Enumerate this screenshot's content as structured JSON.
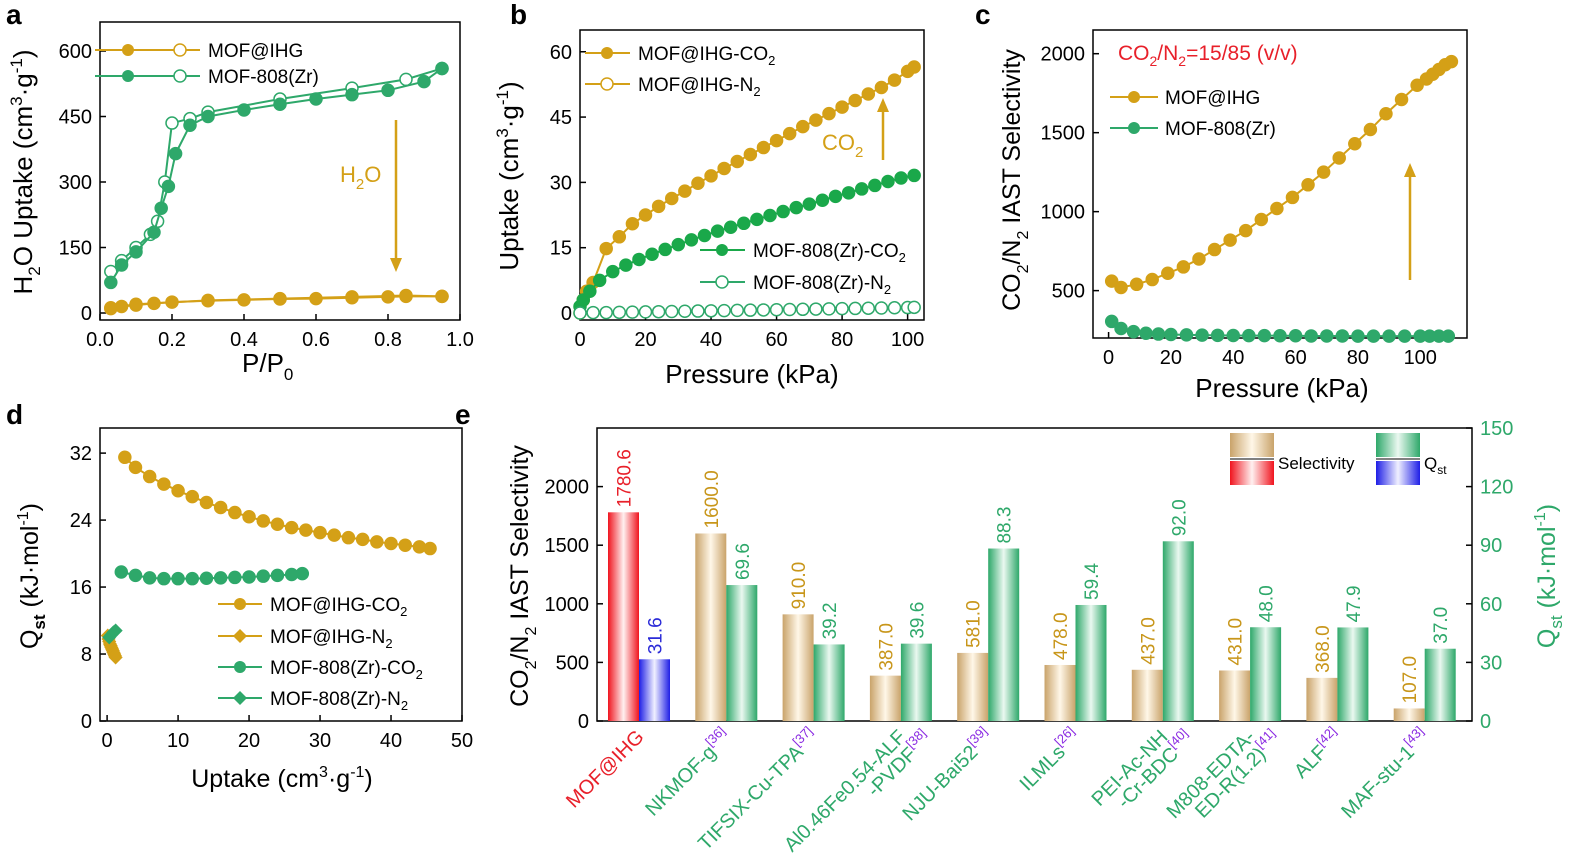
{
  "colors": {
    "gold": "#D4A017",
    "green": "#2EA86A",
    "red": "#E8202A",
    "blue": "#2B2BD8",
    "purple": "#8A2BE2"
  },
  "chart_data": [
    {
      "id": "a",
      "type": "line",
      "panel_label": "a",
      "xlabel": "P/P0",
      "ylabel": "H2O Uptake (cm3·g-1)",
      "xlim": [
        0,
        1.0
      ],
      "ylim": [
        0,
        600
      ],
      "xticks": [
        "0.0",
        "0.2",
        "0.4",
        "0.6",
        "0.8",
        "1.0"
      ],
      "yticks": [
        "0",
        "150",
        "300",
        "450",
        "600"
      ],
      "annotation": "H2O",
      "series": [
        {
          "name": "MOF@IHG",
          "color": "gold",
          "adsorption": {
            "x": [
              0.03,
              0.06,
              0.1,
              0.15,
              0.2,
              0.3,
              0.4,
              0.5,
              0.6,
              0.7,
              0.8,
              0.85,
              0.95
            ],
            "y": [
              10,
              15,
              18,
              22,
              25,
              28,
              30,
              32,
              33,
              35,
              37,
              38,
              38
            ]
          },
          "desorption": {
            "x": [
              0.95,
              0.85,
              0.7,
              0.5,
              0.3,
              0.1,
              0.03
            ],
            "y": [
              38,
              40,
              37,
              33,
              29,
              20,
              12
            ]
          }
        },
        {
          "name": "MOF-808(Zr)",
          "color": "green",
          "adsorption": {
            "x": [
              0.03,
              0.06,
              0.1,
              0.15,
              0.17,
              0.19,
              0.21,
              0.25,
              0.3,
              0.4,
              0.5,
              0.6,
              0.7,
              0.8,
              0.9,
              0.95
            ],
            "y": [
              70,
              110,
              140,
              185,
              240,
              290,
              365,
              430,
              450,
              465,
              478,
              490,
              500,
              510,
              530,
              560
            ]
          },
          "desorption": {
            "x": [
              0.95,
              0.85,
              0.7,
              0.5,
              0.3,
              0.25,
              0.2,
              0.18,
              0.16,
              0.14,
              0.1,
              0.06,
              0.03
            ],
            "y": [
              560,
              535,
              515,
              490,
              460,
              445,
              435,
              300,
              210,
              180,
              150,
              120,
              95
            ]
          }
        }
      ]
    },
    {
      "id": "b",
      "type": "line",
      "panel_label": "b",
      "xlabel": "Pressure (kPa)",
      "ylabel": "Uptake (cm3·g-1)",
      "xlim": [
        0,
        105
      ],
      "ylim": [
        0,
        65
      ],
      "xticks": [
        "0",
        "20",
        "40",
        "60",
        "80",
        "100"
      ],
      "yticks": [
        "0",
        "15",
        "30",
        "45",
        "60"
      ],
      "annotation": "CO2",
      "series": [
        {
          "name": "MOF@IHG-CO2",
          "color": "gold",
          "filled": true,
          "x": [
            0,
            1,
            2,
            4,
            8,
            12,
            16,
            20,
            24,
            28,
            32,
            36,
            40,
            44,
            48,
            52,
            56,
            60,
            64,
            68,
            72,
            76,
            80,
            84,
            88,
            92,
            96,
            100,
            102
          ],
          "y": [
            0,
            3,
            5,
            7,
            14.8,
            17.5,
            20.5,
            22.5,
            24.5,
            26.3,
            28,
            29.8,
            31.5,
            33.2,
            34.8,
            36.4,
            38,
            39.6,
            41.2,
            42.8,
            44.3,
            45.8,
            47.3,
            48.8,
            50.3,
            51.8,
            53.5,
            55.5,
            56.5
          ]
        },
        {
          "name": "MOF@IHG-N2",
          "color": "gold",
          "filled": false,
          "x": [],
          "y": []
        },
        {
          "name": "MOF-808(Zr)-CO2",
          "color": "green",
          "filled": true,
          "x": [
            0,
            1,
            3,
            6,
            10,
            14,
            18,
            22,
            26,
            30,
            34,
            38,
            42,
            46,
            50,
            54,
            58,
            62,
            66,
            70,
            74,
            78,
            82,
            86,
            90,
            94,
            98,
            102
          ],
          "y": [
            1.5,
            3,
            5,
            7.5,
            9.5,
            11,
            12.3,
            13.5,
            14.6,
            15.7,
            16.8,
            17.8,
            18.8,
            19.7,
            20.6,
            21.5,
            22.4,
            23.3,
            24.2,
            25,
            25.9,
            26.8,
            27.6,
            28.5,
            29.3,
            30.2,
            31,
            31.6
          ]
        },
        {
          "name": "MOF-808(Zr)-N2",
          "color": "green",
          "filled": false,
          "x": [
            0,
            4,
            8,
            12,
            16,
            20,
            24,
            28,
            32,
            36,
            40,
            44,
            48,
            52,
            56,
            60,
            64,
            68,
            72,
            76,
            80,
            84,
            88,
            92,
            96,
            100,
            102
          ],
          "y": [
            0,
            0.1,
            0.1,
            0.15,
            0.2,
            0.25,
            0.3,
            0.35,
            0.4,
            0.45,
            0.5,
            0.55,
            0.6,
            0.65,
            0.7,
            0.75,
            0.8,
            0.85,
            0.9,
            0.95,
            1.0,
            1.05,
            1.1,
            1.15,
            1.2,
            1.25,
            1.3
          ]
        }
      ]
    },
    {
      "id": "c",
      "type": "line",
      "panel_label": "c",
      "xlabel": "Pressure (kPa)",
      "ylabel": "CO2/N2 IAST Selectivity",
      "xlim": [
        -5,
        115
      ],
      "ylim": [
        200,
        2150
      ],
      "xticks": [
        "0",
        "20",
        "40",
        "60",
        "80",
        "100"
      ],
      "yticks": [
        "500",
        "1000",
        "1500",
        "2000"
      ],
      "condition": "CO2/N2=15/85 (v/v)",
      "series": [
        {
          "name": "MOF@IHG",
          "color": "gold",
          "x": [
            1,
            4,
            9,
            14,
            19,
            24,
            29,
            34,
            39,
            44,
            49,
            54,
            59,
            64,
            69,
            74,
            79,
            84,
            89,
            94,
            99,
            102,
            104,
            106,
            108,
            110
          ],
          "y": [
            560,
            520,
            540,
            570,
            610,
            650,
            700,
            760,
            820,
            880,
            950,
            1020,
            1090,
            1170,
            1250,
            1340,
            1430,
            1520,
            1620,
            1710,
            1800,
            1840,
            1870,
            1900,
            1930,
            1950
          ]
        },
        {
          "name": "MOF-808(Zr)",
          "color": "green",
          "x": [
            1,
            4,
            8,
            12,
            16,
            20,
            25,
            30,
            35,
            40,
            45,
            50,
            55,
            60,
            65,
            70,
            75,
            80,
            85,
            90,
            95,
            100,
            103,
            106,
            109
          ],
          "y": [
            305,
            260,
            240,
            230,
            225,
            222,
            220,
            218,
            217,
            216,
            215,
            215,
            214,
            214,
            213,
            213,
            213,
            212,
            212,
            212,
            212,
            212,
            212,
            212,
            212
          ]
        }
      ]
    },
    {
      "id": "d",
      "type": "line",
      "panel_label": "d",
      "xlabel": "Uptake (cm3·g-1)",
      "ylabel": "Qst (kJ·mol-1)",
      "xlim": [
        -1,
        50
      ],
      "ylim": [
        0,
        35
      ],
      "xticks": [
        "0",
        "10",
        "20",
        "30",
        "40",
        "50"
      ],
      "yticks": [
        "0",
        "8",
        "16",
        "24",
        "32"
      ],
      "series": [
        {
          "name": "MOF@IHG-CO2",
          "color": "gold",
          "marker": "circle",
          "x": [
            2.5,
            4,
            6,
            8,
            10,
            12,
            14,
            16,
            18,
            20,
            22,
            24,
            26,
            28,
            30,
            32,
            34,
            36,
            38,
            40,
            42,
            44,
            45.5
          ],
          "y": [
            31.5,
            30.3,
            29.2,
            28.3,
            27.5,
            26.8,
            26.1,
            25.5,
            24.9,
            24.4,
            23.9,
            23.5,
            23.1,
            22.8,
            22.5,
            22.2,
            21.9,
            21.7,
            21.4,
            21.2,
            21.0,
            20.8,
            20.6
          ]
        },
        {
          "name": "MOF@IHG-N2",
          "color": "gold",
          "marker": "diamond",
          "x": [
            0.1,
            0.2,
            0.3,
            0.4,
            0.5,
            0.6,
            0.7,
            0.8,
            0.9,
            1.0,
            1.1,
            1.2
          ],
          "y": [
            10.2,
            9.8,
            9.5,
            9.2,
            9.0,
            8.8,
            8.6,
            8.4,
            8.2,
            8.0,
            7.8,
            7.6
          ]
        },
        {
          "name": "MOF-808(Zr)-CO2",
          "color": "green",
          "marker": "circle",
          "x": [
            2,
            4,
            6,
            8,
            10,
            12,
            14,
            16,
            18,
            20,
            22,
            24,
            26,
            27.5
          ],
          "y": [
            17.8,
            17.4,
            17.1,
            17.0,
            17.0,
            17.0,
            17.05,
            17.1,
            17.15,
            17.2,
            17.3,
            17.4,
            17.5,
            17.6
          ]
        },
        {
          "name": "MOF-808(Zr)-N2",
          "color": "green",
          "marker": "diamond",
          "x": [
            0.3,
            0.6,
            0.9,
            1.2
          ],
          "y": [
            10.0,
            10.3,
            10.6,
            10.8
          ]
        }
      ]
    },
    {
      "id": "e",
      "type": "bar",
      "panel_label": "e",
      "ylabel": "CO2/N2 IAST Selectivity",
      "y2label": "Qst (kJ·mol-1)",
      "ylim": [
        0,
        2500
      ],
      "y2lim": [
        0,
        150
      ],
      "yticks": [
        "0",
        "500",
        "1000",
        "1500",
        "2000"
      ],
      "y2ticks": [
        "0",
        "30",
        "60",
        "90",
        "120",
        "150"
      ],
      "legend": {
        "selectivity": "Selectivity",
        "qst": "Qst"
      },
      "categories": [
        "MOF@IHG",
        "NKMOF-g",
        "TIFSIX-Cu-TPA",
        "Al0.46Fe0.54-ALF-PVDF",
        "NJU-Bai52",
        "ILMLs",
        "PEI-Ac-NH-Cr-BDC",
        "M808-EDTA-ED-R(1.2)",
        "ALF",
        "MAF-stu-1"
      ],
      "selectivity": [
        1780.6,
        1600.0,
        910.0,
        387.0,
        581.0,
        478.0,
        437.0,
        431.0,
        368.0,
        107.0
      ],
      "selectivity_labels": [
        "1780.6",
        "1600.0",
        "910.0",
        "387.0",
        "581.0",
        "478.0",
        "437.0",
        "431.0",
        "368.0",
        "107.0"
      ],
      "qst": [
        31.6,
        69.6,
        39.2,
        39.6,
        88.3,
        59.4,
        92.0,
        48.0,
        47.9,
        37.0
      ],
      "qst_labels": [
        "31.6",
        "69.6",
        "39.2",
        "39.6",
        "88.3",
        "59.4",
        "92.0",
        "48.0",
        "47.9",
        "37.0"
      ]
    }
  ]
}
